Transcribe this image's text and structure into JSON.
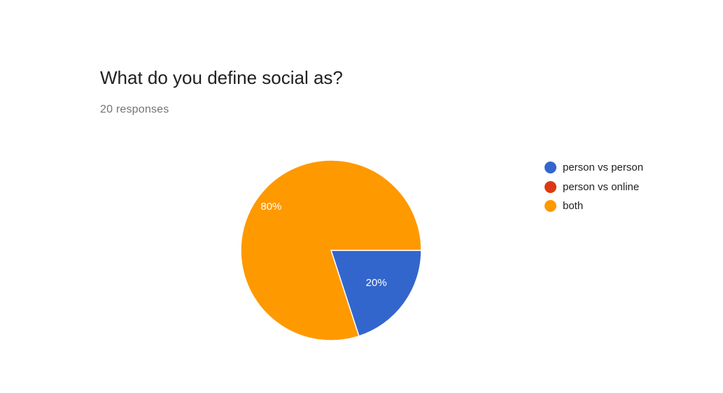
{
  "form": {
    "question": "What do you define social as?",
    "responses": "20 responses"
  },
  "colors": {
    "person_vs_person": "#3366cc",
    "person_vs_online": "#dc3912",
    "both": "#ff9900"
  },
  "chart_data": {
    "type": "pie",
    "title": "What do you define social as?",
    "subtitle": "20 responses",
    "legend_position": "right",
    "slices": [
      {
        "label": "person vs person",
        "value": 20,
        "display": "20%",
        "color": "#3366cc"
      },
      {
        "label": "person vs online",
        "value": 0,
        "display": "",
        "color": "#dc3912"
      },
      {
        "label": "both",
        "value": 80,
        "display": "80%",
        "color": "#ff9900"
      }
    ]
  }
}
